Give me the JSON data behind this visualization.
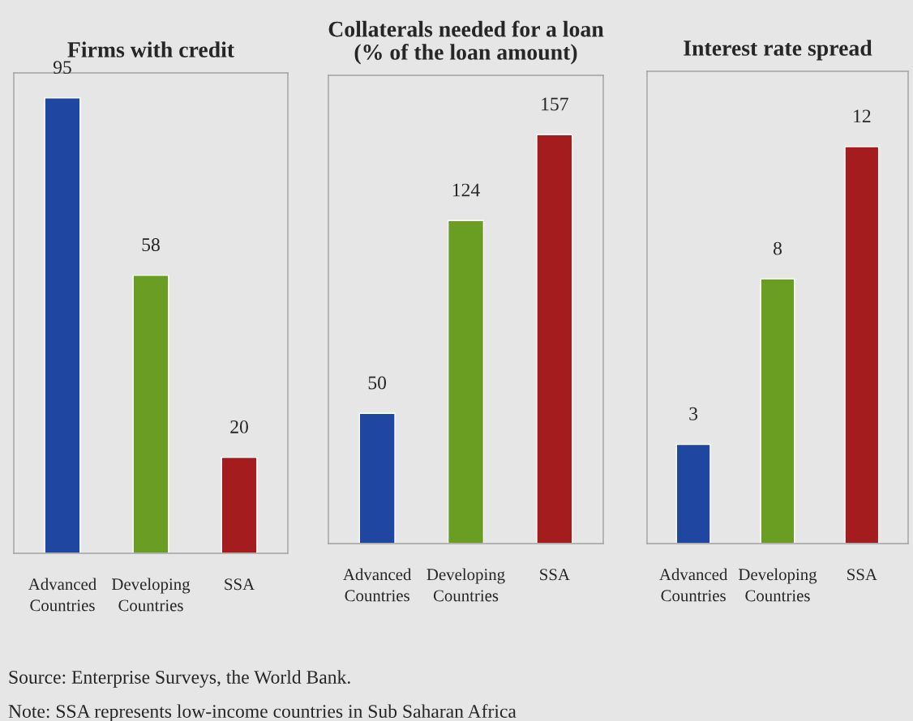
{
  "chart_data": [
    {
      "type": "bar",
      "title": "Firms with credit",
      "categories": [
        "Advanced Countries",
        "Developing Countries",
        "SSA"
      ],
      "values": [
        95,
        58,
        20
      ],
      "colors": [
        "#1f46a0",
        "#6a9e23",
        "#a51c1f"
      ],
      "data_labels": true,
      "annotations": [
        "Source: Enterprise Surveys, the World Bank.",
        "Note: SSA represents low-income countries in Sub Saharan Africa"
      ]
    },
    {
      "type": "bar",
      "title": "Collaterals needed for a loan\n(% of the loan amount)",
      "categories": [
        "Advanced Countries",
        "Developing Countries",
        "SSA"
      ],
      "values": [
        50,
        124,
        157
      ],
      "colors": [
        "#1f46a0",
        "#6a9e23",
        "#a51c1f"
      ],
      "data_labels": true
    },
    {
      "type": "bar",
      "title": "Interest rate spread",
      "categories": [
        "Advanced Countries",
        "Developing Countries",
        "SSA"
      ],
      "values": [
        3,
        8,
        12
      ],
      "colors": [
        "#1f46a0",
        "#6a9e23",
        "#a51c1f"
      ],
      "data_labels": true
    }
  ]
}
